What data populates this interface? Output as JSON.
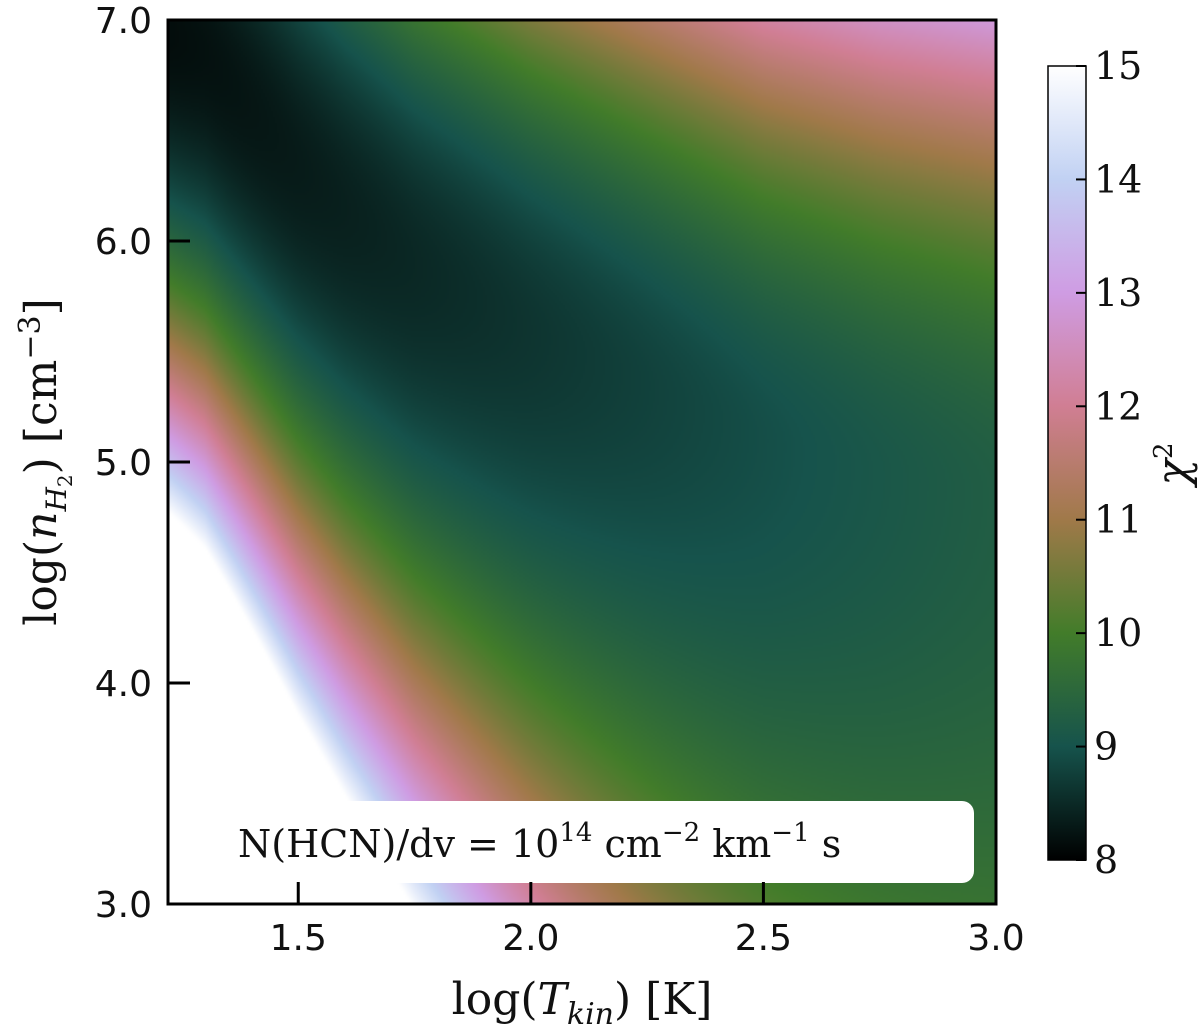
{
  "chart_data": {
    "type": "heatmap",
    "title": "",
    "xlabel": {
      "pre": "log(",
      "var": "T",
      "sub": "kin",
      "post": ") [K]"
    },
    "ylabel": {
      "pre": "log(",
      "var": "n",
      "sub": "H",
      "subsub": "2",
      "post": ") [cm",
      "sup": "−3",
      "end": "]"
    },
    "xlim": [
      1.22,
      3.0
    ],
    "ylim": [
      3.0,
      7.0
    ],
    "xticks": [
      1.5,
      2.0,
      2.5,
      3.0
    ],
    "xtick_labels": [
      "1.5",
      "2.0",
      "2.5",
      "3.0"
    ],
    "yticks": [
      3.0,
      4.0,
      5.0,
      6.0,
      7.0
    ],
    "ytick_labels": [
      "3.0",
      "4.0",
      "5.0",
      "6.0",
      "7.0"
    ],
    "colorbar": {
      "label": "χ",
      "label_sup": "2",
      "vmin": 8,
      "vmax": 15,
      "ticks": [
        8,
        9,
        10,
        11,
        12,
        13,
        14,
        15
      ],
      "tick_labels": [
        "8",
        "9",
        "10",
        "11",
        "12",
        "13",
        "14",
        "15"
      ],
      "colormap": "cubehelix",
      "colors": [
        "#000000",
        "#16534c",
        "#427c2a",
        "#a07949",
        "#d07e93",
        "#cf9ce3",
        "#c1d1f3",
        "#ffffff"
      ]
    },
    "valley": {
      "description": "chi-square minimum ridge; chi2 rises away from it",
      "points": [
        [
          1.22,
          6.95
        ],
        [
          1.3,
          6.85
        ],
        [
          1.4,
          6.6
        ],
        [
          1.5,
          6.35
        ],
        [
          1.6,
          6.15
        ],
        [
          1.75,
          5.9
        ],
        [
          2.0,
          5.6
        ],
        [
          2.25,
          5.35
        ],
        [
          2.5,
          5.1
        ],
        [
          2.75,
          4.95
        ],
        [
          3.0,
          4.85
        ]
      ]
    },
    "annotation": {
      "text_pre": "N(HCN)/dv = 10",
      "exp1": "14",
      "text_mid": " cm",
      "exp2": "−2",
      "text_mid2": " km",
      "exp3": "−1",
      "text_post": " s"
    }
  }
}
